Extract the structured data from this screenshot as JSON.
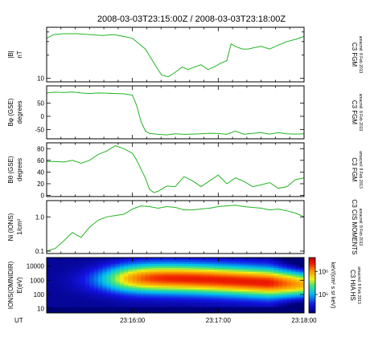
{
  "title": "2008-03-03T23:15:00Z / 2008-03-03T23:18:00Z",
  "colors": {
    "trace": "#22b522",
    "frame": "#000000"
  },
  "time_axis": {
    "label": "UT",
    "range": [
      "23:15:00",
      "23:18:00"
    ],
    "tick_labels": [
      "23:16:00",
      "23:17:00",
      "23:18:00"
    ],
    "minor_ticks_per_minute": 6
  },
  "panels": [
    {
      "ylabel": [
        "|B|",
        "nT"
      ],
      "instrument": "C3 FGM",
      "stamp": "amacmil: 8 Feb 2013",
      "scale": "log",
      "ylim": [
        9,
        46
      ],
      "tick_labels": [
        "10"
      ],
      "minor_ticks": [
        20,
        30,
        40
      ]
    },
    {
      "ylabel": [
        "Bφ (GSE)",
        "degrees"
      ],
      "instrument": "C3 FGM",
      "stamp": "amacmil: 8 Feb 2013",
      "scale": "linear",
      "ylim": [
        -85,
        115
      ],
      "tick_labels": [
        "50",
        "0",
        "-50"
      ],
      "tick_values": [
        50,
        0,
        -50
      ]
    },
    {
      "ylabel": [
        "Bθ (GSE)",
        "degrees"
      ],
      "instrument": "C3 FGM",
      "stamp": "amacmil: 8 Feb 2013",
      "scale": "linear",
      "ylim": [
        -2,
        90
      ],
      "tick_labels": [
        "80",
        "60",
        "40",
        "20",
        "0"
      ],
      "tick_values": [
        80,
        60,
        40,
        20,
        0
      ]
    },
    {
      "ylabel": [
        "Ni (IONS)",
        "1/cm³"
      ],
      "instrument": "C3 CIS MOMENTS",
      "stamp": "amacmil: 8 Feb 2013",
      "scale": "log",
      "ylim": [
        0.085,
        3.0
      ],
      "tick_labels": [
        "1.0",
        "0.1"
      ],
      "tick_values": [
        1.0,
        0.1
      ]
    },
    {
      "ylabel": [
        "IONS(OMNIDIR)",
        "E(eV)"
      ],
      "instrument": "C3 HIA HS",
      "stamp": "amacmil: 8 Feb 2013",
      "scale": "log",
      "ylim": [
        5,
        40000
      ],
      "tick_labels": [
        "10000",
        "1000",
        "100",
        "10"
      ],
      "tick_values": [
        10000,
        1000,
        100,
        10
      ],
      "colorbar": {
        "label": "keV/(cm² s sr keV)",
        "tick_labels": [
          "10⁶",
          "10⁵"
        ],
        "range_exp": [
          4.2,
          6.6
        ],
        "tick_exp": [
          6,
          5
        ]
      }
    }
  ],
  "chart_data": [
    {
      "type": "line",
      "title": "2008-03-03T23:15:00Z / 2008-03-03T23:18:00Z",
      "xlabel": "UT",
      "ylabel": "|B| nT",
      "yscale": "log",
      "xlim_min": [
        0,
        3
      ],
      "ylim": [
        9,
        46
      ],
      "series": [
        {
          "x_min": [
            0,
            0.08,
            0.2,
            0.35,
            0.5,
            0.65,
            0.78,
            0.9,
            1.0,
            1.08,
            1.15,
            1.22,
            1.28,
            1.34,
            1.42,
            1.5,
            1.58,
            1.65,
            1.72,
            1.8,
            1.88,
            1.95,
            2.02,
            2.1,
            2.15,
            2.2,
            2.28,
            2.35,
            2.42,
            2.5,
            2.6,
            2.7,
            2.8,
            2.9,
            3.0
          ],
          "y": [
            33,
            37,
            38,
            38,
            37,
            36,
            37,
            35,
            33,
            28,
            24,
            18,
            14,
            11,
            10.5,
            12,
            14,
            13,
            14,
            15,
            13,
            14,
            15.5,
            17,
            28,
            26,
            24,
            24,
            25,
            26,
            24,
            27,
            30,
            32,
            35
          ]
        }
      ]
    },
    {
      "type": "line",
      "xlabel": "UT",
      "ylabel": "Bφ (GSE) degrees",
      "xlim_min": [
        0,
        3
      ],
      "ylim": [
        -85,
        115
      ],
      "series": [
        {
          "x_min": [
            0,
            0.1,
            0.2,
            0.3,
            0.4,
            0.5,
            0.6,
            0.7,
            0.8,
            0.9,
            1.0,
            1.05,
            1.1,
            1.15,
            1.2,
            1.3,
            1.4,
            1.5,
            1.6,
            1.7,
            1.8,
            1.9,
            2.0,
            2.1,
            2.2,
            2.3,
            2.4,
            2.5,
            2.6,
            2.7,
            2.8,
            2.9,
            3.0
          ],
          "y": [
            88,
            91,
            90,
            92,
            88,
            86,
            88,
            87,
            86,
            85,
            80,
            40,
            -20,
            -55,
            -65,
            -68,
            -70,
            -66,
            -68,
            -67,
            -66,
            -64,
            -65,
            -68,
            -56,
            -68,
            -64,
            -62,
            -67,
            -62,
            -66,
            -67,
            -66
          ]
        }
      ]
    },
    {
      "type": "line",
      "xlabel": "UT",
      "ylabel": "Bθ (GSE) degrees",
      "xlim_min": [
        0,
        3
      ],
      "ylim": [
        -2,
        90
      ],
      "series": [
        {
          "x_min": [
            0,
            0.1,
            0.2,
            0.3,
            0.4,
            0.5,
            0.6,
            0.7,
            0.8,
            0.9,
            1.0,
            1.05,
            1.1,
            1.15,
            1.2,
            1.25,
            1.3,
            1.4,
            1.5,
            1.6,
            1.7,
            1.8,
            1.9,
            2.0,
            2.1,
            2.2,
            2.3,
            2.4,
            2.5,
            2.6,
            2.7,
            2.8,
            2.9,
            3.0
          ],
          "y": [
            58,
            58,
            57,
            60,
            55,
            60,
            70,
            76,
            85,
            80,
            72,
            60,
            45,
            30,
            10,
            5,
            7,
            16,
            15,
            32,
            25,
            15,
            25,
            35,
            20,
            30,
            24,
            15,
            18,
            22,
            12,
            15,
            27,
            30
          ]
        }
      ]
    },
    {
      "type": "line",
      "xlabel": "UT",
      "ylabel": "Ni (IONS) 1/cm³",
      "yscale": "log",
      "xlim_min": [
        0,
        3
      ],
      "ylim": [
        0.085,
        3.0
      ],
      "series": [
        {
          "x_min": [
            0,
            0.1,
            0.2,
            0.3,
            0.4,
            0.5,
            0.6,
            0.7,
            0.8,
            0.9,
            1.0,
            1.1,
            1.2,
            1.3,
            1.4,
            1.5,
            1.6,
            1.7,
            1.8,
            1.9,
            2.0,
            2.1,
            2.2,
            2.3,
            2.4,
            2.5,
            2.6,
            2.7,
            2.8,
            2.9,
            3.0
          ],
          "y": [
            0.1,
            0.12,
            0.2,
            0.35,
            0.25,
            0.5,
            0.8,
            1.0,
            1.1,
            1.2,
            1.7,
            2.1,
            2.0,
            1.8,
            2.0,
            1.9,
            1.6,
            1.6,
            1.7,
            1.8,
            2.0,
            2.1,
            2.2,
            2.0,
            1.9,
            1.8,
            1.6,
            1.7,
            1.5,
            1.3,
            1.0
          ]
        }
      ]
    },
    {
      "type": "heatmap",
      "xlabel": "UT",
      "ylabel": "IONS(OMNIDIR) E(eV)",
      "yscale": "log",
      "xlim_min": [
        0,
        3
      ],
      "ylim": [
        5,
        40000
      ],
      "colorbar_label": "keV/(cm² s sr keV)",
      "colorbar_log_range": [
        4.2,
        6.6
      ],
      "feature": "energy flux increases after 23:16:00; peak near 1000 eV, decreasing toward the end"
    }
  ]
}
